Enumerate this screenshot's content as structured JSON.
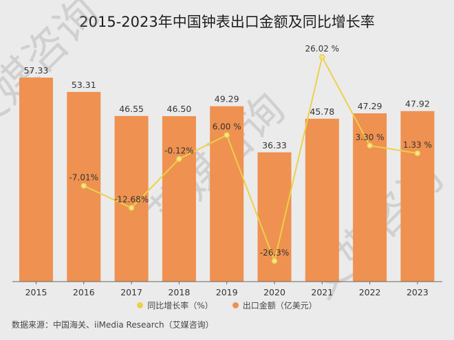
{
  "title": "2015-2023年中国钟表出口金额及同比增长率",
  "legend": {
    "line_label": "同比增长率（%）",
    "bar_label": "出口金额（亿美元）"
  },
  "source": "数据来源：中国海关、iiMedia Research（艾媒咨询）",
  "watermark": "艾媒咨询",
  "colors": {
    "bar": "#ef9150",
    "line": "#ecd04a",
    "background": "#ebebeb",
    "axis": "#666666"
  },
  "chart_data": {
    "type": "bar+line",
    "title": "2015-2023年中国钟表出口金额及同比增长率",
    "categories": [
      "2015",
      "2016",
      "2017",
      "2018",
      "2019",
      "2020",
      "2021",
      "2022",
      "2023"
    ],
    "series": [
      {
        "name": "出口金额（亿美元）",
        "type": "bar",
        "values": [
          57.33,
          53.31,
          46.55,
          46.5,
          49.29,
          36.33,
          45.78,
          47.29,
          47.92
        ],
        "labels": [
          "57.33",
          "53.31",
          "46.55",
          "46.50",
          "49.29",
          "36.33",
          "45.78",
          "47.29",
          "47.92"
        ]
      },
      {
        "name": "同比增长率（%）",
        "type": "line",
        "values": [
          null,
          -7.01,
          -12.68,
          -0.12,
          6.0,
          -26.3,
          26.02,
          3.3,
          1.33
        ],
        "labels": [
          "",
          "-7.01%",
          "-12.68%",
          "-0.12%",
          "6.00 %",
          "-26.3%",
          "26.02 %",
          "3.30 %",
          "1.33 %"
        ]
      }
    ],
    "xlabel": "",
    "ylabel": "",
    "grid": false,
    "legend_position": "bottom"
  }
}
